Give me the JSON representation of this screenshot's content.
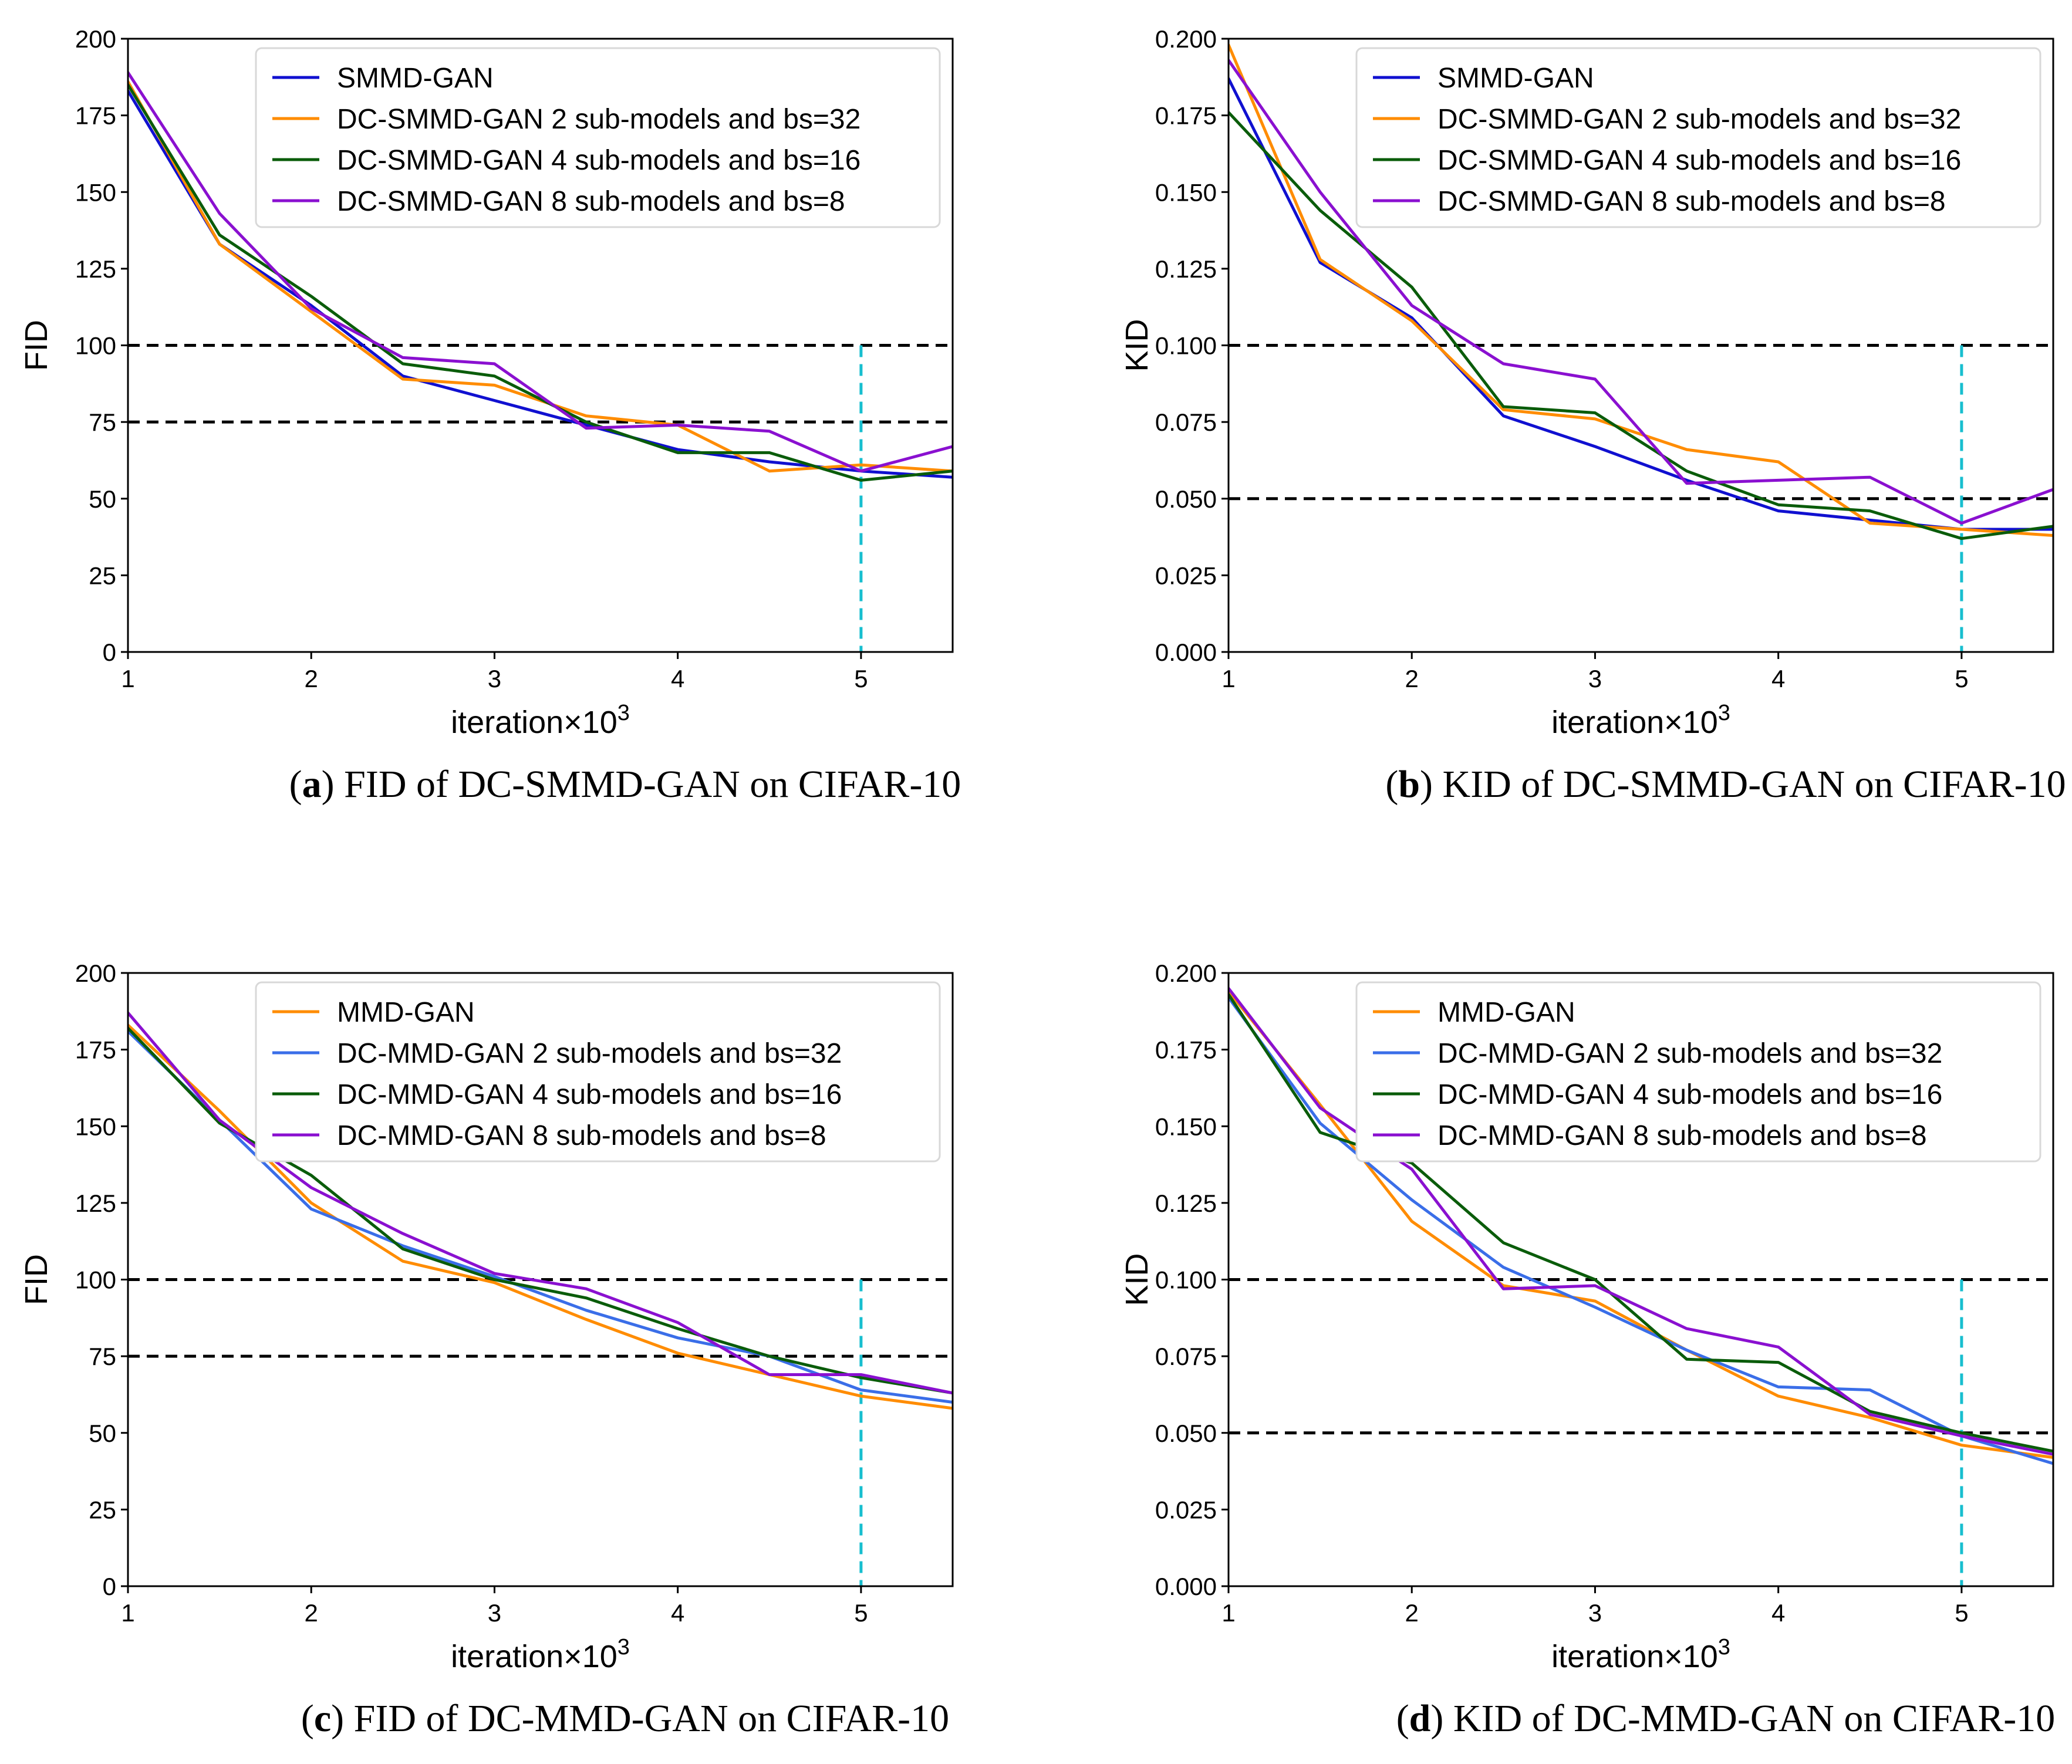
{
  "chart_data": [
    {
      "type": "line",
      "caption_letter": "a",
      "caption_text": "FID of DC-SMMD-GAN on CIFAR-10",
      "xlabel": "iteration",
      "xlabel_suffix": "×10",
      "xlabel_exp": "3",
      "ylabel": "FID",
      "xlim": [
        1,
        5.5
      ],
      "ylim": [
        0,
        200
      ],
      "xticks": [
        1,
        2,
        3,
        4,
        5
      ],
      "xtick_labels": [
        "1",
        "2",
        "3",
        "4",
        "5"
      ],
      "yticks": [
        0,
        25,
        50,
        75,
        100,
        125,
        150,
        175,
        200
      ],
      "ytick_labels": [
        "0",
        "25",
        "50",
        "75",
        "100",
        "125",
        "150",
        "175",
        "200"
      ],
      "hlines": [
        100,
        75
      ],
      "vline": {
        "x": 5,
        "ymax": 100
      },
      "legend_position": "top-right",
      "x": [
        1,
        1.5,
        2,
        2.5,
        3,
        3.5,
        4,
        4.5,
        5,
        5.5
      ],
      "series": [
        {
          "name": "SMMD-GAN",
          "color": "#1010d0",
          "values": [
            183,
            133,
            113,
            90,
            82,
            74,
            66,
            62,
            59,
            57
          ]
        },
        {
          "name": "DC-SMMD-GAN 2 sub-models and bs=32",
          "color": "#ff8c00",
          "values": [
            186,
            133,
            111,
            89,
            87,
            77,
            74,
            59,
            61,
            59
          ]
        },
        {
          "name": "DC-SMMD-GAN 4 sub-models and bs=16",
          "color": "#0a5c0a",
          "values": [
            185,
            136,
            116,
            94,
            90,
            75,
            65,
            65,
            56,
            59
          ]
        },
        {
          "name": "DC-SMMD-GAN 8 sub-models and bs=8",
          "color": "#8a10d0",
          "values": [
            189,
            143,
            112,
            96,
            94,
            73,
            74,
            72,
            59,
            67
          ]
        }
      ]
    },
    {
      "type": "line",
      "caption_letter": "b",
      "caption_text": "KID of DC-SMMD-GAN on CIFAR-10",
      "xlabel": "iteration",
      "xlabel_suffix": "×10",
      "xlabel_exp": "3",
      "ylabel": "KID",
      "xlim": [
        1,
        5.5
      ],
      "ylim": [
        0,
        0.2
      ],
      "xticks": [
        1,
        2,
        3,
        4,
        5
      ],
      "xtick_labels": [
        "1",
        "2",
        "3",
        "4",
        "5"
      ],
      "yticks": [
        0,
        0.025,
        0.05,
        0.075,
        0.1,
        0.125,
        0.15,
        0.175,
        0.2
      ],
      "ytick_labels": [
        "0.000",
        "0.025",
        "0.050",
        "0.075",
        "0.100",
        "0.125",
        "0.150",
        "0.175",
        "0.200"
      ],
      "hlines": [
        0.1,
        0.05
      ],
      "vline": {
        "x": 5,
        "ymax": 0.1
      },
      "legend_position": "top-right",
      "x": [
        1,
        1.5,
        2,
        2.5,
        3,
        3.5,
        4,
        4.5,
        5,
        5.5
      ],
      "series": [
        {
          "name": "SMMD-GAN",
          "color": "#1010d0",
          "values": [
            0.187,
            0.127,
            0.109,
            0.077,
            0.067,
            0.056,
            0.046,
            0.043,
            0.04,
            0.04
          ]
        },
        {
          "name": "DC-SMMD-GAN 2 sub-models and bs=32",
          "color": "#ff8c00",
          "values": [
            0.198,
            0.128,
            0.108,
            0.079,
            0.076,
            0.066,
            0.062,
            0.042,
            0.04,
            0.038
          ]
        },
        {
          "name": "DC-SMMD-GAN 4 sub-models and bs=16",
          "color": "#0a5c0a",
          "values": [
            0.176,
            0.144,
            0.119,
            0.08,
            0.078,
            0.059,
            0.048,
            0.046,
            0.037,
            0.041
          ]
        },
        {
          "name": "DC-SMMD-GAN 8 sub-models and bs=8",
          "color": "#8a10d0",
          "values": [
            0.193,
            0.15,
            0.113,
            0.094,
            0.089,
            0.055,
            0.056,
            0.057,
            0.042,
            0.053
          ]
        }
      ]
    },
    {
      "type": "line",
      "caption_letter": "c",
      "caption_text": "FID of DC-MMD-GAN on CIFAR-10",
      "xlabel": "iteration",
      "xlabel_suffix": "×10",
      "xlabel_exp": "3",
      "ylabel": "FID",
      "xlim": [
        1,
        5.5
      ],
      "ylim": [
        0,
        200
      ],
      "xticks": [
        1,
        2,
        3,
        4,
        5
      ],
      "xtick_labels": [
        "1",
        "2",
        "3",
        "4",
        "5"
      ],
      "yticks": [
        0,
        25,
        50,
        75,
        100,
        125,
        150,
        175,
        200
      ],
      "ytick_labels": [
        "0",
        "25",
        "50",
        "75",
        "100",
        "125",
        "150",
        "175",
        "200"
      ],
      "hlines": [
        100,
        75
      ],
      "vline": {
        "x": 5,
        "ymax": 100
      },
      "legend_position": "top-right",
      "x": [
        1,
        1.5,
        2,
        2.5,
        3,
        3.5,
        4,
        4.5,
        5,
        5.5
      ],
      "series": [
        {
          "name": "MMD-GAN",
          "color": "#ff8c00",
          "values": [
            183,
            155,
            125,
            106,
            99,
            87,
            76,
            69,
            62,
            58
          ]
        },
        {
          "name": "DC-MMD-GAN 2 sub-models and bs=32",
          "color": "#3a6ee8",
          "values": [
            181,
            152,
            123,
            111,
            101,
            90,
            81,
            75,
            64,
            60
          ]
        },
        {
          "name": "DC-MMD-GAN 4 sub-models and bs=16",
          "color": "#0a5c0a",
          "values": [
            182,
            151,
            134,
            110,
            100,
            94,
            84,
            75,
            68,
            63
          ]
        },
        {
          "name": "DC-MMD-GAN 8 sub-models and bs=8",
          "color": "#8a10d0",
          "values": [
            187,
            152,
            130,
            115,
            102,
            97,
            86,
            69,
            69,
            63
          ]
        }
      ]
    },
    {
      "type": "line",
      "caption_letter": "d",
      "caption_text": "KID of DC-MMD-GAN on CIFAR-10",
      "xlabel": "iteration",
      "xlabel_suffix": "×10",
      "xlabel_exp": "3",
      "ylabel": "KID",
      "xlim": [
        1,
        5.5
      ],
      "ylim": [
        0,
        0.2
      ],
      "xticks": [
        1,
        2,
        3,
        4,
        5
      ],
      "xtick_labels": [
        "1",
        "2",
        "3",
        "4",
        "5"
      ],
      "yticks": [
        0,
        0.025,
        0.05,
        0.075,
        0.1,
        0.125,
        0.15,
        0.175,
        0.2
      ],
      "ytick_labels": [
        "0.000",
        "0.025",
        "0.050",
        "0.075",
        "0.100",
        "0.125",
        "0.150",
        "0.175",
        "0.200"
      ],
      "hlines": [
        0.1,
        0.05
      ],
      "vline": {
        "x": 5,
        "ymax": 0.1
      },
      "legend_position": "top-right",
      "x": [
        1,
        1.5,
        2,
        2.5,
        3,
        3.5,
        4,
        4.5,
        5,
        5.5
      ],
      "series": [
        {
          "name": "MMD-GAN",
          "color": "#ff8c00",
          "values": [
            0.194,
            0.157,
            0.119,
            0.098,
            0.093,
            0.077,
            0.062,
            0.055,
            0.046,
            0.042
          ]
        },
        {
          "name": "DC-MMD-GAN 2 sub-models and bs=32",
          "color": "#3a6ee8",
          "values": [
            0.192,
            0.151,
            0.126,
            0.104,
            0.091,
            0.077,
            0.065,
            0.064,
            0.049,
            0.04
          ]
        },
        {
          "name": "DC-MMD-GAN 4 sub-models and bs=16",
          "color": "#0a5c0a",
          "values": [
            0.193,
            0.148,
            0.138,
            0.112,
            0.1,
            0.074,
            0.073,
            0.057,
            0.05,
            0.044
          ]
        },
        {
          "name": "DC-MMD-GAN 8 sub-models and bs=8",
          "color": "#8a10d0",
          "values": [
            0.195,
            0.156,
            0.136,
            0.097,
            0.098,
            0.084,
            0.078,
            0.056,
            0.049,
            0.043
          ]
        }
      ]
    }
  ],
  "colors": {
    "guide_line": "#000000",
    "marker_line": "#17becf",
    "legend_border": "#d8d8d8"
  }
}
